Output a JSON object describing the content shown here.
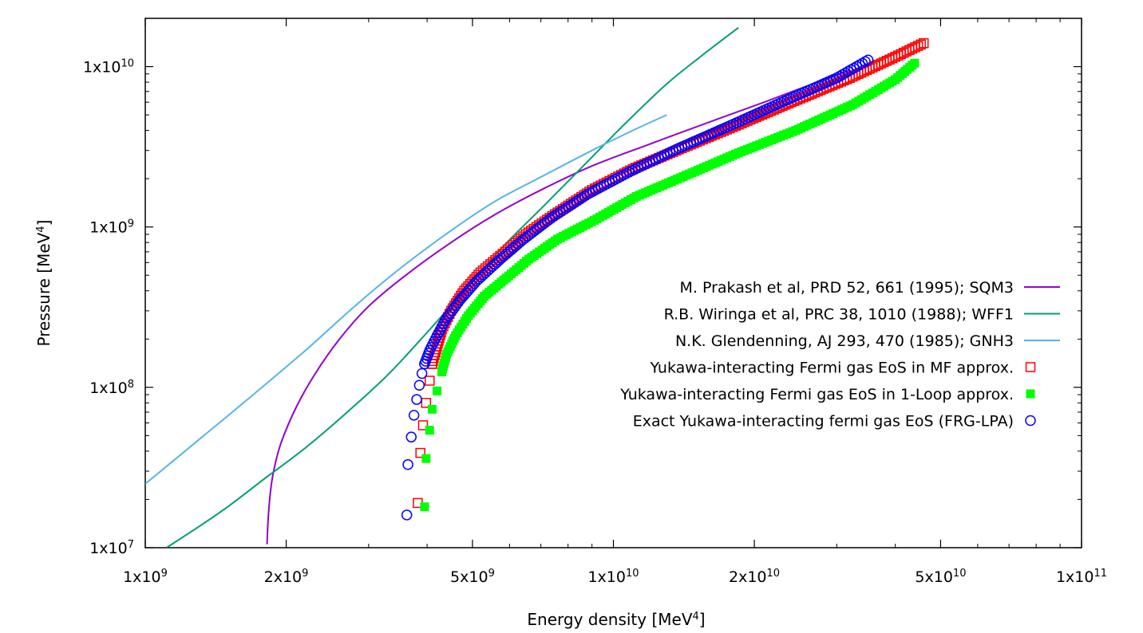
{
  "chart_data": {
    "type": "scatter",
    "xscale": "log",
    "yscale": "log",
    "xlim": [
      1000000000,
      100000000000
    ],
    "ylim": [
      10000000,
      20000000000
    ],
    "xlabel": {
      "text": "Energy density [MeV",
      "sup": "4",
      "close": "]"
    },
    "ylabel": {
      "text": "Pressure [MeV",
      "sup": "4",
      "close": "]"
    },
    "xticks": [
      {
        "value": 1000000000,
        "mant": "1x10",
        "exp": "9"
      },
      {
        "value": 2000000000,
        "mant": "2x10",
        "exp": "9"
      },
      {
        "value": 5000000000,
        "mant": "5x10",
        "exp": "9"
      },
      {
        "value": 10000000000,
        "mant": "1x10",
        "exp": "10"
      },
      {
        "value": 20000000000,
        "mant": "2x10",
        "exp": "10"
      },
      {
        "value": 50000000000,
        "mant": "5x10",
        "exp": "10"
      },
      {
        "value": 100000000000,
        "mant": "1x10",
        "exp": "11"
      }
    ],
    "yticks": [
      {
        "value": 10000000,
        "mant": "1x10",
        "exp": "7"
      },
      {
        "value": 100000000,
        "mant": "1x10",
        "exp": "8"
      },
      {
        "value": 1000000000,
        "mant": "1x10",
        "exp": "9"
      },
      {
        "value": 10000000000,
        "mant": "1x10",
        "exp": "10"
      }
    ],
    "grid": false,
    "legend_position": "right",
    "series": [
      {
        "name": "M. Prakash et al, PRD 52, 661 (1995); SQM3",
        "style": "line",
        "color": "#9400d3",
        "x": [
          1820000000,
          1830000000,
          1850000000,
          1880000000,
          1950000000,
          2100000000,
          2300000000,
          2600000000,
          3000000000,
          3600000000,
          4500000000,
          5600000000,
          7000000000,
          9000000000,
          12000000000,
          16000000000,
          21000000000,
          26000000000,
          32000000000
        ],
        "y": [
          10500000,
          15000000,
          22000000,
          30000000,
          45000000,
          75000000,
          120000000,
          200000000,
          320000000,
          500000000,
          800000000,
          1200000000,
          1700000000,
          2400000000,
          3300000000,
          4500000000,
          6000000000,
          7600000000,
          9500000000
        ]
      },
      {
        "name": "R.B. Wiringa et al, PRC 38, 1010 (1988); WFF1",
        "style": "line",
        "color": "#009e73",
        "x": [
          1110000000,
          1300000000,
          1500000000,
          1800000000,
          2200000000,
          2700000000,
          3300000000,
          4000000000,
          4800000000,
          5800000000,
          7000000000,
          8500000000,
          10500000000,
          13000000000,
          15500000000,
          18500000000
        ],
        "y": [
          10000000,
          13500000,
          18000000,
          27000000,
          42000000,
          70000000,
          120000000,
          220000000,
          400000000,
          750000000,
          1300000000,
          2300000000,
          4300000000,
          7800000000,
          11800000000,
          17500000000
        ]
      },
      {
        "name": "N.K. Glendenning, AJ 293, 470 (1985); GNH3",
        "style": "line",
        "color": "#56b4e9",
        "x": [
          1000000000,
          1300000000,
          1700000000,
          2200000000,
          2800000000,
          3500000000,
          4500000000,
          5600000000,
          7000000000,
          9000000000,
          11000000000,
          13000000000
        ],
        "y": [
          25000000,
          47000000,
          90000000,
          170000000,
          320000000,
          550000000,
          950000000,
          1450000000,
          2050000000,
          3000000000,
          4000000000,
          5000000000
        ]
      },
      {
        "name": "Yukawa-interacting Fermi gas EoS in MF approx.",
        "style": "open-square",
        "color": "#ff0000",
        "x": [
          3820000000,
          3870000000,
          3920000000,
          3980000000,
          4050000000,
          4100000000,
          4200000000,
          4300000000,
          4500000000,
          4800000000,
          5200000000,
          5800000000,
          6500000000,
          7500000000,
          9000000000,
          11000000000,
          14000000000,
          18000000000,
          24000000000,
          32000000000,
          40000000000,
          46000000000
        ],
        "y": [
          19000000,
          39000000,
          58000000,
          80000000,
          110000000,
          140000000,
          180000000,
          230000000,
          300000000,
          400000000,
          520000000,
          680000000,
          900000000,
          1200000000,
          1700000000,
          2300000000,
          3100000000,
          4200000000,
          6000000000,
          8500000000,
          11500000000,
          14000000000
        ]
      },
      {
        "name": "Yukawa-interacting Fermi gas EoS in 1-Loop approx.",
        "style": "filled-square",
        "color": "#00ff00",
        "x": [
          3950000000,
          3980000000,
          4050000000,
          4100000000,
          4200000000,
          4300000000,
          4400000000,
          4600000000,
          4900000000,
          5300000000,
          5900000000,
          6600000000,
          7600000000,
          9100000000,
          11200000000,
          14300000000,
          18500000000,
          24500000000,
          32500000000,
          40000000000,
          44000000000
        ],
        "y": [
          18000000,
          36000000,
          54000000,
          73000000,
          95000000,
          125000000,
          160000000,
          210000000,
          280000000,
          370000000,
          480000000,
          630000000,
          840000000,
          1100000000,
          1550000000,
          2100000000,
          2900000000,
          4000000000,
          5800000000,
          8300000000,
          10500000000
        ]
      },
      {
        "name": "Exact Yukawa-interacting fermi gas EoS (FRG-LPA)",
        "style": "open-circle",
        "color": "#0000ff",
        "x": [
          3620000000,
          3640000000,
          3700000000,
          3750000000,
          3800000000,
          3850000000,
          3900000000,
          3950000000,
          4050000000,
          4200000000,
          4400000000,
          4700000000,
          5100000000,
          5700000000,
          6400000000,
          7400000000,
          8800000000,
          10800000000,
          13800000000,
          17800000000,
          23500000000,
          30000000000,
          35000000000
        ],
        "y": [
          16000000,
          33000000,
          49000000,
          67000000,
          84000000,
          103000000,
          122000000,
          140000000,
          170000000,
          210000000,
          270000000,
          350000000,
          460000000,
          620000000,
          830000000,
          1150000000,
          1600000000,
          2200000000,
          3100000000,
          4300000000,
          6200000000,
          8500000000,
          11000000000
        ]
      }
    ]
  }
}
